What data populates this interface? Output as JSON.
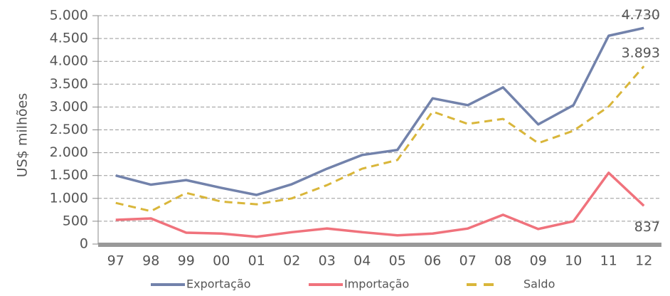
{
  "chart_data": {
    "type": "line",
    "y_label": "US$ milhões",
    "categories": [
      "97",
      "98",
      "99",
      "00",
      "01",
      "02",
      "03",
      "04",
      "05",
      "06",
      "07",
      "08",
      "09",
      "10",
      "11",
      "12"
    ],
    "series": [
      {
        "name": "Exportação",
        "color": "#7282ab",
        "dash": false,
        "values": [
          1500,
          1300,
          1400,
          1230,
          1075,
          1310,
          1650,
          1950,
          2060,
          3190,
          3040,
          3430,
          2620,
          3040,
          4560,
          4730
        ],
        "value_labels": [
          null,
          null,
          null,
          null,
          null,
          null,
          null,
          null,
          null,
          null,
          null,
          null,
          null,
          null,
          null,
          "4.730"
        ]
      },
      {
        "name": "Importação",
        "color": "#f0727c",
        "dash": false,
        "values": [
          530,
          560,
          250,
          230,
          160,
          260,
          340,
          260,
          190,
          230,
          340,
          640,
          330,
          500,
          1560,
          837
        ],
        "value_labels": [
          null,
          null,
          null,
          null,
          null,
          null,
          null,
          null,
          null,
          null,
          null,
          null,
          null,
          null,
          null,
          "837"
        ]
      },
      {
        "name": "Saldo",
        "color": "#d9b63a",
        "dash": true,
        "values": [
          900,
          720,
          1120,
          930,
          870,
          1000,
          1290,
          1650,
          1840,
          2900,
          2630,
          2740,
          2210,
          2480,
          3010,
          3893
        ],
        "value_labels": [
          null,
          null,
          null,
          null,
          null,
          null,
          null,
          null,
          null,
          null,
          null,
          null,
          null,
          null,
          null,
          "3.893"
        ]
      }
    ],
    "ylim": [
      0,
      5000
    ],
    "yticks": [
      0,
      500,
      {
        "value": 1000,
        "label": "1.000"
      },
      {
        "value": 1500,
        "label": "1.500"
      },
      {
        "value": 2000,
        "label": "2.000"
      },
      {
        "value": 2500,
        "label": "2.500"
      },
      {
        "value": 3000,
        "label": "3.000"
      },
      {
        "value": 3500,
        "label": "3.500"
      },
      {
        "value": 4000,
        "label": "4.000"
      },
      {
        "value": 4500,
        "label": "4.500"
      },
      {
        "value": 5000,
        "label": "5.000"
      }
    ],
    "grid": true
  }
}
